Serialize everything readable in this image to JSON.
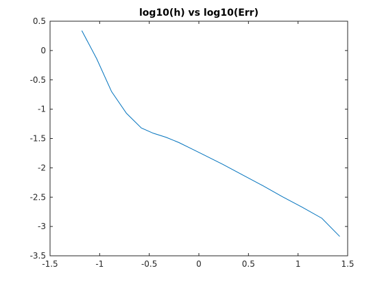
{
  "chart_data": {
    "type": "line",
    "title": "log10(h) vs log10(Err)",
    "xlabel": "",
    "ylabel": "",
    "xlim": [
      -1.5,
      1.5
    ],
    "ylim": [
      -3.5,
      0.5
    ],
    "xticks": [
      -1.5,
      -1,
      -0.5,
      0,
      0.5,
      1,
      1.5
    ],
    "xtick_labels": [
      "-1.5",
      "-1",
      "-0.5",
      "0",
      "0.5",
      "1",
      "1.5"
    ],
    "yticks": [
      -3.5,
      -3,
      -2.5,
      -2,
      -1.5,
      -1,
      -0.5,
      0,
      0.5
    ],
    "ytick_labels": [
      "-3.5",
      "-3",
      "-2.5",
      "-2",
      "-1.5",
      "-1",
      "-0.5",
      "0",
      "0.5"
    ],
    "grid": false,
    "series": [
      {
        "color": "#0072BD",
        "x": [
          -1.18,
          -1.03,
          -0.88,
          -0.73,
          -0.58,
          -0.46,
          -0.33,
          -0.2,
          -0.08,
          0.04,
          0.24,
          0.44,
          0.64,
          0.84,
          1.04,
          1.24,
          1.42
        ],
        "y": [
          0.34,
          -0.14,
          -0.7,
          -1.07,
          -1.32,
          -1.41,
          -1.48,
          -1.57,
          -1.67,
          -1.77,
          -1.94,
          -2.12,
          -2.3,
          -2.49,
          -2.67,
          -2.86,
          -3.17
        ]
      }
    ]
  }
}
